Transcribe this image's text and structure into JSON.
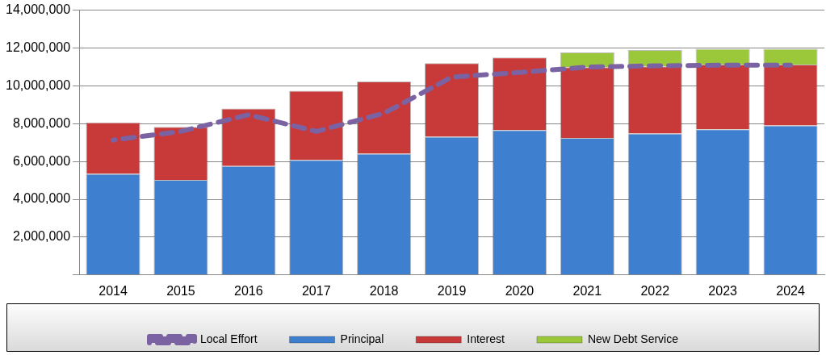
{
  "chart_data": {
    "type": "bar",
    "stacked": true,
    "categories": [
      "2014",
      "2015",
      "2016",
      "2017",
      "2018",
      "2019",
      "2020",
      "2021",
      "2022",
      "2023",
      "2024"
    ],
    "series": [
      {
        "name": "Principal",
        "color": "#3f7fd0",
        "values": [
          5340000,
          5020000,
          5760000,
          6080000,
          6410000,
          7310000,
          7660000,
          7240000,
          7480000,
          7700000,
          7900000
        ]
      },
      {
        "name": "Interest",
        "color": "#c83a3a",
        "values": [
          2720000,
          2810000,
          3040000,
          3660000,
          3820000,
          3890000,
          3840000,
          3750000,
          3550000,
          3430000,
          3230000
        ]
      },
      {
        "name": "New Debt Service",
        "color": "#9bc83a",
        "values": [
          null,
          null,
          null,
          null,
          null,
          null,
          null,
          770000,
          860000,
          830000,
          830000
        ]
      },
      {
        "name": "Local Effort",
        "type": "line",
        "color": "#7b62a3",
        "line_style": "dashed",
        "marker": "none",
        "values": [
          7130000,
          7590000,
          8470000,
          7590000,
          8550000,
          10460000,
          10710000,
          10990000,
          11060000,
          11090000,
          11090000
        ]
      }
    ],
    "ylim": [
      0,
      14000000
    ],
    "yticks": [
      {
        "value": 0,
        "label": null
      },
      {
        "value": 2000000,
        "label": "2,000,000"
      },
      {
        "value": 4000000,
        "label": "4,000,000"
      },
      {
        "value": 6000000,
        "label": "6,000,000"
      },
      {
        "value": 8000000,
        "label": "8,000,000"
      },
      {
        "value": 10000000,
        "label": "10,000,000"
      },
      {
        "value": 12000000,
        "label": "12,000,000"
      },
      {
        "value": 14000000,
        "label": "14,000,000"
      }
    ],
    "grid": "y",
    "legend": "bottom"
  }
}
